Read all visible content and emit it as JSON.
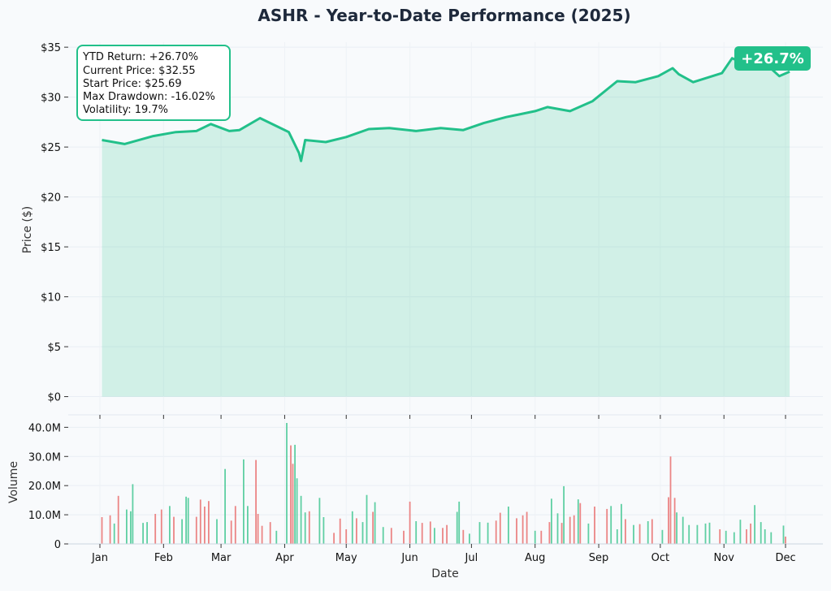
{
  "chart_data": {
    "title": "ASHR - Year-to-Date Performance (2025)",
    "price_panel": {
      "type": "area",
      "ylabel": "Price ($)",
      "ylim": [
        -1.5,
        35.5
      ],
      "y_ticks": [
        0,
        5,
        10,
        15,
        20,
        25,
        30,
        35
      ],
      "y_tick_labels": [
        "$0",
        "$5",
        "$10",
        "$15",
        "$20",
        "$25",
        "$30",
        "$35"
      ],
      "grid": true,
      "line_color": "#22c08a",
      "fill_color": "#22c08a",
      "series": [
        {
          "x": [
            "2025-01-02",
            "2025-01-13",
            "2025-01-27",
            "2025-02-07",
            "2025-02-17",
            "2025-02-24",
            "2025-03-05",
            "2025-03-10",
            "2025-03-20",
            "2025-03-31",
            "2025-04-03",
            "2025-04-08",
            "2025-04-09",
            "2025-04-11",
            "2025-04-21",
            "2025-05-01",
            "2025-05-12",
            "2025-05-22",
            "2025-06-04",
            "2025-06-16",
            "2025-06-27",
            "2025-07-07",
            "2025-07-18",
            "2025-08-01",
            "2025-08-07",
            "2025-08-18",
            "2025-08-29",
            "2025-09-10",
            "2025-09-19",
            "2025-09-30",
            "2025-10-07",
            "2025-10-10",
            "2025-10-17",
            "2025-10-31",
            "2025-11-05",
            "2025-11-14",
            "2025-11-20",
            "2025-11-28",
            "2025-12-03"
          ],
          "values": [
            25.7,
            25.3,
            26.1,
            26.5,
            26.6,
            27.3,
            26.6,
            26.7,
            27.9,
            26.8,
            26.5,
            24.4,
            23.6,
            25.7,
            25.5,
            26.0,
            26.8,
            26.9,
            26.6,
            26.9,
            26.7,
            27.4,
            28.0,
            28.6,
            29.0,
            28.6,
            29.6,
            31.6,
            31.5,
            32.1,
            32.9,
            32.3,
            31.5,
            32.4,
            33.9,
            33.1,
            33.6,
            32.1,
            32.55
          ]
        }
      ],
      "badge": "+26.7%",
      "stats_box": [
        "YTD Return: +26.70%",
        "Current Price: $32.55",
        "Start Price: $25.69",
        "Max Drawdown: -16.02%",
        "Volatility: 19.7%"
      ]
    },
    "volume_panel": {
      "type": "bar",
      "xlabel": "Date",
      "ylabel": "Volume",
      "ylim": [
        0,
        44000000
      ],
      "y_ticks": [
        0,
        10000000,
        20000000,
        30000000,
        40000000
      ],
      "y_tick_labels": [
        "0",
        "10.0M",
        "20.0M",
        "30.0M",
        "40.0M"
      ],
      "x_tick_labels": [
        "Jan",
        "Feb",
        "Mar",
        "Apr",
        "May",
        "Jun",
        "Jul",
        "Aug",
        "Sep",
        "Oct",
        "Nov",
        "Dec"
      ],
      "x_tick_dates": [
        "2025-01-01",
        "2025-02-01",
        "2025-03-01",
        "2025-04-01",
        "2025-05-01",
        "2025-06-01",
        "2025-07-01",
        "2025-08-01",
        "2025-09-01",
        "2025-10-01",
        "2025-11-01",
        "2025-12-01"
      ],
      "up_color": "#5fcfa3",
      "down_color": "#eb8585",
      "bars": [
        {
          "date": "2025-01-02",
          "value": 9200000,
          "dir": "down"
        },
        {
          "date": "2025-01-06",
          "value": 9800000,
          "dir": "down"
        },
        {
          "date": "2025-01-08",
          "value": 7000000,
          "dir": "up"
        },
        {
          "date": "2025-01-10",
          "value": 16500000,
          "dir": "down"
        },
        {
          "date": "2025-01-14",
          "value": 11800000,
          "dir": "up"
        },
        {
          "date": "2025-01-16",
          "value": 11200000,
          "dir": "up"
        },
        {
          "date": "2025-01-17",
          "value": 20500000,
          "dir": "up"
        },
        {
          "date": "2025-01-22",
          "value": 7200000,
          "dir": "up"
        },
        {
          "date": "2025-01-24",
          "value": 7500000,
          "dir": "up"
        },
        {
          "date": "2025-01-28",
          "value": 10300000,
          "dir": "down"
        },
        {
          "date": "2025-01-31",
          "value": 11800000,
          "dir": "down"
        },
        {
          "date": "2025-02-04",
          "value": 13000000,
          "dir": "up"
        },
        {
          "date": "2025-02-06",
          "value": 9300000,
          "dir": "down"
        },
        {
          "date": "2025-02-10",
          "value": 8500000,
          "dir": "up"
        },
        {
          "date": "2025-02-12",
          "value": 16200000,
          "dir": "up"
        },
        {
          "date": "2025-02-13",
          "value": 15800000,
          "dir": "up"
        },
        {
          "date": "2025-02-17",
          "value": 9300000,
          "dir": "down"
        },
        {
          "date": "2025-02-19",
          "value": 15200000,
          "dir": "down"
        },
        {
          "date": "2025-02-21",
          "value": 12800000,
          "dir": "down"
        },
        {
          "date": "2025-02-23",
          "value": 14700000,
          "dir": "down"
        },
        {
          "date": "2025-02-27",
          "value": 8500000,
          "dir": "up"
        },
        {
          "date": "2025-03-03",
          "value": 25700000,
          "dir": "up"
        },
        {
          "date": "2025-03-06",
          "value": 8000000,
          "dir": "down"
        },
        {
          "date": "2025-03-08",
          "value": 13000000,
          "dir": "down"
        },
        {
          "date": "2025-03-12",
          "value": 29000000,
          "dir": "up"
        },
        {
          "date": "2025-03-14",
          "value": 13000000,
          "dir": "up"
        },
        {
          "date": "2025-03-18",
          "value": 28800000,
          "dir": "down"
        },
        {
          "date": "2025-03-19",
          "value": 10300000,
          "dir": "down"
        },
        {
          "date": "2025-03-21",
          "value": 6200000,
          "dir": "down"
        },
        {
          "date": "2025-03-25",
          "value": 7500000,
          "dir": "down"
        },
        {
          "date": "2025-03-28",
          "value": 4500000,
          "dir": "up"
        },
        {
          "date": "2025-04-02",
          "value": 41500000,
          "dir": "up"
        },
        {
          "date": "2025-04-04",
          "value": 33800000,
          "dir": "down"
        },
        {
          "date": "2025-04-05",
          "value": 27500000,
          "dir": "down"
        },
        {
          "date": "2025-04-06",
          "value": 34000000,
          "dir": "up"
        },
        {
          "date": "2025-04-07",
          "value": 22500000,
          "dir": "up"
        },
        {
          "date": "2025-04-09",
          "value": 16500000,
          "dir": "up"
        },
        {
          "date": "2025-04-11",
          "value": 10800000,
          "dir": "up"
        },
        {
          "date": "2025-04-13",
          "value": 11200000,
          "dir": "down"
        },
        {
          "date": "2025-04-18",
          "value": 15800000,
          "dir": "up"
        },
        {
          "date": "2025-04-20",
          "value": 9200000,
          "dir": "up"
        },
        {
          "date": "2025-04-25",
          "value": 3800000,
          "dir": "down"
        },
        {
          "date": "2025-04-28",
          "value": 8700000,
          "dir": "down"
        },
        {
          "date": "2025-05-01",
          "value": 5000000,
          "dir": "down"
        },
        {
          "date": "2025-05-04",
          "value": 11200000,
          "dir": "up"
        },
        {
          "date": "2025-05-06",
          "value": 8800000,
          "dir": "down"
        },
        {
          "date": "2025-05-09",
          "value": 7500000,
          "dir": "up"
        },
        {
          "date": "2025-05-11",
          "value": 16800000,
          "dir": "up"
        },
        {
          "date": "2025-05-14",
          "value": 11000000,
          "dir": "down"
        },
        {
          "date": "2025-05-15",
          "value": 14300000,
          "dir": "up"
        },
        {
          "date": "2025-05-19",
          "value": 5800000,
          "dir": "up"
        },
        {
          "date": "2025-05-23",
          "value": 5500000,
          "dir": "down"
        },
        {
          "date": "2025-05-29",
          "value": 4500000,
          "dir": "down"
        },
        {
          "date": "2025-06-01",
          "value": 14500000,
          "dir": "down"
        },
        {
          "date": "2025-06-04",
          "value": 7800000,
          "dir": "up"
        },
        {
          "date": "2025-06-07",
          "value": 7200000,
          "dir": "down"
        },
        {
          "date": "2025-06-11",
          "value": 7700000,
          "dir": "down"
        },
        {
          "date": "2025-06-13",
          "value": 5500000,
          "dir": "up"
        },
        {
          "date": "2025-06-17",
          "value": 5500000,
          "dir": "down"
        },
        {
          "date": "2025-06-19",
          "value": 6500000,
          "dir": "down"
        },
        {
          "date": "2025-06-24",
          "value": 11000000,
          "dir": "up"
        },
        {
          "date": "2025-06-25",
          "value": 14500000,
          "dir": "up"
        },
        {
          "date": "2025-06-27",
          "value": 4800000,
          "dir": "down"
        },
        {
          "date": "2025-06-30",
          "value": 3500000,
          "dir": "up"
        },
        {
          "date": "2025-07-05",
          "value": 7500000,
          "dir": "up"
        },
        {
          "date": "2025-07-09",
          "value": 7300000,
          "dir": "up"
        },
        {
          "date": "2025-07-13",
          "value": 8000000,
          "dir": "down"
        },
        {
          "date": "2025-07-15",
          "value": 10700000,
          "dir": "down"
        },
        {
          "date": "2025-07-19",
          "value": 12800000,
          "dir": "up"
        },
        {
          "date": "2025-07-23",
          "value": 8800000,
          "dir": "down"
        },
        {
          "date": "2025-07-26",
          "value": 9800000,
          "dir": "down"
        },
        {
          "date": "2025-07-28",
          "value": 11000000,
          "dir": "down"
        },
        {
          "date": "2025-08-01",
          "value": 4500000,
          "dir": "up"
        },
        {
          "date": "2025-08-04",
          "value": 4500000,
          "dir": "down"
        },
        {
          "date": "2025-08-08",
          "value": 7500000,
          "dir": "down"
        },
        {
          "date": "2025-08-09",
          "value": 15500000,
          "dir": "up"
        },
        {
          "date": "2025-08-12",
          "value": 10500000,
          "dir": "up"
        },
        {
          "date": "2025-08-14",
          "value": 7200000,
          "dir": "down"
        },
        {
          "date": "2025-08-15",
          "value": 19800000,
          "dir": "up"
        },
        {
          "date": "2025-08-18",
          "value": 9300000,
          "dir": "down"
        },
        {
          "date": "2025-08-20",
          "value": 9800000,
          "dir": "down"
        },
        {
          "date": "2025-08-22",
          "value": 15300000,
          "dir": "up"
        },
        {
          "date": "2025-08-23",
          "value": 14000000,
          "dir": "down"
        },
        {
          "date": "2025-08-27",
          "value": 7000000,
          "dir": "up"
        },
        {
          "date": "2025-08-30",
          "value": 12800000,
          "dir": "down"
        },
        {
          "date": "2025-09-05",
          "value": 12000000,
          "dir": "down"
        },
        {
          "date": "2025-09-07",
          "value": 13000000,
          "dir": "up"
        },
        {
          "date": "2025-09-10",
          "value": 5000000,
          "dir": "up"
        },
        {
          "date": "2025-09-12",
          "value": 13700000,
          "dir": "up"
        },
        {
          "date": "2025-09-14",
          "value": 8500000,
          "dir": "down"
        },
        {
          "date": "2025-09-18",
          "value": 6500000,
          "dir": "up"
        },
        {
          "date": "2025-09-21",
          "value": 6800000,
          "dir": "down"
        },
        {
          "date": "2025-09-25",
          "value": 7800000,
          "dir": "up"
        },
        {
          "date": "2025-09-27",
          "value": 8500000,
          "dir": "down"
        },
        {
          "date": "2025-10-02",
          "value": 4800000,
          "dir": "up"
        },
        {
          "date": "2025-10-05",
          "value": 16000000,
          "dir": "down"
        },
        {
          "date": "2025-10-06",
          "value": 30000000,
          "dir": "down"
        },
        {
          "date": "2025-10-08",
          "value": 15800000,
          "dir": "down"
        },
        {
          "date": "2025-10-09",
          "value": 10800000,
          "dir": "up"
        },
        {
          "date": "2025-10-12",
          "value": 9300000,
          "dir": "up"
        },
        {
          "date": "2025-10-15",
          "value": 6500000,
          "dir": "up"
        },
        {
          "date": "2025-10-19",
          "value": 6500000,
          "dir": "up"
        },
        {
          "date": "2025-10-23",
          "value": 7000000,
          "dir": "up"
        },
        {
          "date": "2025-10-25",
          "value": 7300000,
          "dir": "up"
        },
        {
          "date": "2025-10-30",
          "value": 5000000,
          "dir": "down"
        },
        {
          "date": "2025-11-02",
          "value": 4500000,
          "dir": "up"
        },
        {
          "date": "2025-11-06",
          "value": 4000000,
          "dir": "up"
        },
        {
          "date": "2025-11-09",
          "value": 8300000,
          "dir": "up"
        },
        {
          "date": "2025-11-12",
          "value": 5000000,
          "dir": "down"
        },
        {
          "date": "2025-11-14",
          "value": 7000000,
          "dir": "down"
        },
        {
          "date": "2025-11-16",
          "value": 13300000,
          "dir": "up"
        },
        {
          "date": "2025-11-19",
          "value": 7500000,
          "dir": "up"
        },
        {
          "date": "2025-11-21",
          "value": 5000000,
          "dir": "up"
        },
        {
          "date": "2025-11-24",
          "value": 4000000,
          "dir": "up"
        },
        {
          "date": "2025-11-30",
          "value": 6300000,
          "dir": "up"
        },
        {
          "date": "2025-12-01",
          "value": 2500000,
          "dir": "down"
        }
      ]
    }
  }
}
